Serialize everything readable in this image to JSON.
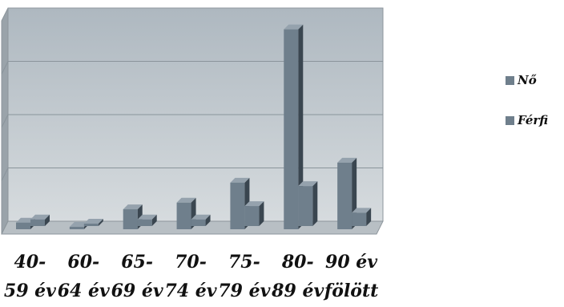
{
  "chart_data": {
    "type": "bar",
    "title": "",
    "xlabel": "",
    "ylabel": "",
    "categories": [
      [
        "40-",
        "59 év"
      ],
      [
        "60-",
        "64 év"
      ],
      [
        "65-",
        "69 év"
      ],
      [
        "70-",
        "74 év"
      ],
      [
        "75-",
        "79 év"
      ],
      [
        "80-",
        "89 év"
      ],
      [
        "90 év",
        "fölött"
      ]
    ],
    "series": [
      {
        "name": "Nő",
        "values": [
          1,
          0,
          3,
          4,
          7,
          30,
          10
        ]
      },
      {
        "name": "Férfi",
        "values": [
          1,
          0,
          1,
          1,
          3,
          6,
          2
        ]
      }
    ],
    "ylim": [
      0,
      32
    ],
    "grid": true,
    "legend": "right",
    "colors": {
      "bar_front": "#6f7f8c",
      "bar_side": "#3a4650",
      "bar_top": "#95a2ad",
      "wall_top": "#bfc8cf",
      "wall_bottom": "#d2d8dc",
      "wall_side": "#9aa3aa",
      "floor": "#b8bfc4",
      "legend_swatch": "#6f7f8c"
    }
  }
}
